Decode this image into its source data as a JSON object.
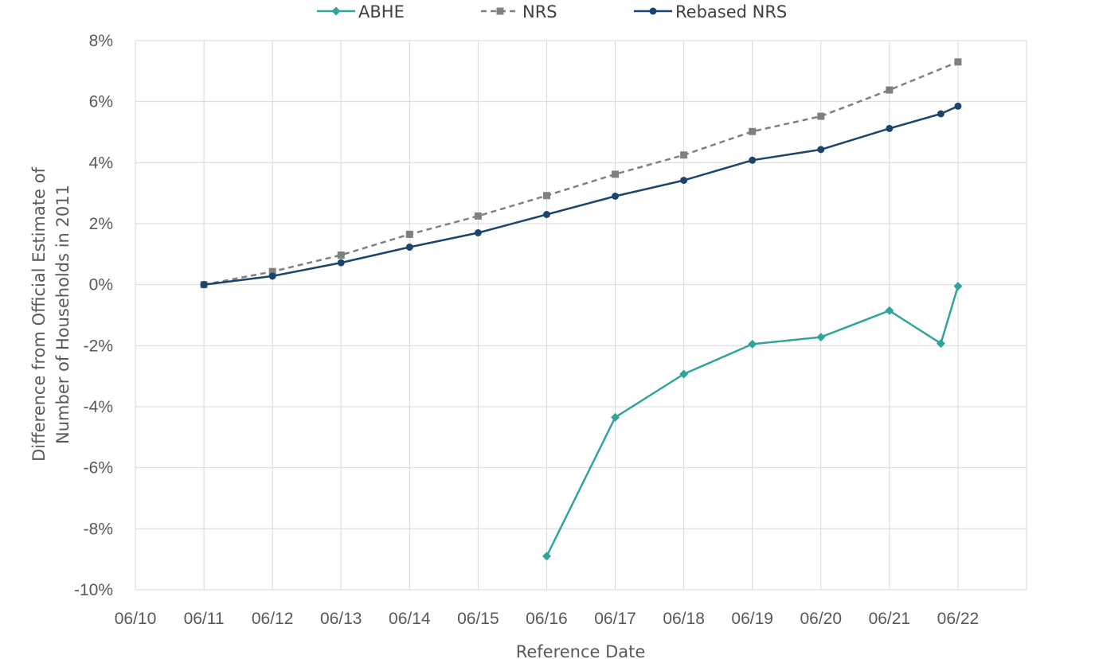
{
  "chart_data": {
    "type": "line",
    "xlabel": "Reference Date",
    "ylabel_lines": [
      "Difference from Official Estimate of",
      "Number of Households in 2011"
    ],
    "x_ticks": [
      "06/10",
      "06/11",
      "06/12",
      "06/13",
      "06/14",
      "06/15",
      "06/16",
      "06/17",
      "06/18",
      "06/19",
      "06/20",
      "06/21",
      "06/22"
    ],
    "y_ticks": [
      "8%",
      "6%",
      "4%",
      "2%",
      "0%",
      "-2%",
      "-4%",
      "-6%",
      "-8%",
      "-10%"
    ],
    "xlim": [
      2010.5,
      2023.5
    ],
    "ylim": [
      -10,
      8
    ],
    "grid": true,
    "legend_position": "top",
    "series": [
      {
        "name": "ABHE",
        "color": "#2fa59a",
        "style": "solid",
        "marker": "diamond",
        "points": [
          [
            2016.5,
            -8.9
          ],
          [
            2017.5,
            -4.35
          ],
          [
            2018.5,
            -2.93
          ],
          [
            2019.5,
            -1.95
          ],
          [
            2020.5,
            -1.72
          ],
          [
            2021.5,
            -0.85
          ],
          [
            2022.25,
            -1.93
          ],
          [
            2022.5,
            -0.05
          ]
        ]
      },
      {
        "name": "NRS",
        "color": "#808080",
        "style": "dashed",
        "marker": "square",
        "points": [
          [
            2011.5,
            0.0
          ],
          [
            2012.5,
            0.43
          ],
          [
            2013.5,
            0.97
          ],
          [
            2014.5,
            1.65
          ],
          [
            2015.5,
            2.25
          ],
          [
            2016.5,
            2.92
          ],
          [
            2017.5,
            3.62
          ],
          [
            2018.5,
            4.25
          ],
          [
            2019.5,
            5.02
          ],
          [
            2020.5,
            5.52
          ],
          [
            2021.5,
            6.38
          ],
          [
            2022.5,
            7.3
          ]
        ]
      },
      {
        "name": "Rebased NRS",
        "color": "#1c456d",
        "style": "solid",
        "marker": "circle",
        "points": [
          [
            2011.5,
            0.0
          ],
          [
            2012.5,
            0.28
          ],
          [
            2013.5,
            0.72
          ],
          [
            2014.5,
            1.23
          ],
          [
            2015.5,
            1.7
          ],
          [
            2016.5,
            2.3
          ],
          [
            2017.5,
            2.9
          ],
          [
            2018.5,
            3.42
          ],
          [
            2019.5,
            4.08
          ],
          [
            2020.5,
            4.43
          ],
          [
            2021.5,
            5.12
          ],
          [
            2022.25,
            5.6
          ],
          [
            2022.5,
            5.85
          ]
        ]
      }
    ]
  }
}
